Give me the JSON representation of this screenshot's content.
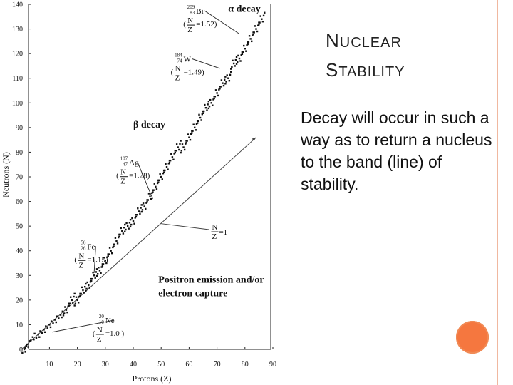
{
  "chart_data": {
    "type": "scatter",
    "title": "",
    "xlabel": "Protons (Z)",
    "ylabel": "Neutrons (N)",
    "xlim": [
      0,
      95
    ],
    "ylim": [
      0,
      140
    ],
    "x_ticks": [
      10,
      20,
      30,
      40,
      50,
      60,
      70,
      80,
      90
    ],
    "y_ticks": [
      0,
      10,
      20,
      30,
      40,
      50,
      60,
      70,
      80,
      90,
      100,
      110,
      120,
      130,
      140
    ],
    "grid": false,
    "band_of_stability": [
      [
        1,
        0
      ],
      [
        2,
        2
      ],
      [
        4,
        5
      ],
      [
        6,
        6
      ],
      [
        8,
        8
      ],
      [
        10,
        10
      ],
      [
        12,
        12
      ],
      [
        14,
        14
      ],
      [
        16,
        16
      ],
      [
        18,
        20
      ],
      [
        20,
        20
      ],
      [
        22,
        24
      ],
      [
        24,
        26
      ],
      [
        26,
        30
      ],
      [
        28,
        32
      ],
      [
        30,
        36
      ],
      [
        32,
        40
      ],
      [
        34,
        44
      ],
      [
        36,
        48
      ],
      [
        38,
        50
      ],
      [
        40,
        52
      ],
      [
        42,
        56
      ],
      [
        44,
        58
      ],
      [
        46,
        62
      ],
      [
        48,
        66
      ],
      [
        50,
        70
      ],
      [
        52,
        74
      ],
      [
        54,
        78
      ],
      [
        56,
        82
      ],
      [
        58,
        82
      ],
      [
        60,
        86
      ],
      [
        62,
        90
      ],
      [
        64,
        94
      ],
      [
        66,
        98
      ],
      [
        68,
        100
      ],
      [
        70,
        104
      ],
      [
        72,
        108
      ],
      [
        74,
        110
      ],
      [
        76,
        116
      ],
      [
        78,
        118
      ],
      [
        80,
        122
      ],
      [
        82,
        126
      ],
      [
        84,
        130
      ],
      [
        86,
        134
      ]
    ],
    "reference_line": {
      "label_num": "N",
      "label_den": "Z",
      "label_value": "=1",
      "from": [
        0,
        0
      ],
      "to": [
        84,
        86
      ]
    },
    "regions": [
      {
        "text": "α decay",
        "x": 74,
        "y": 137
      },
      {
        "text": "β decay",
        "x": 40,
        "y": 90
      },
      {
        "text": "Positron emission and/or",
        "x": 49,
        "y": 27
      },
      {
        "text": "electron capture",
        "x": 49,
        "y": 21.5
      }
    ],
    "nuclide_annotations": [
      {
        "mass": "209",
        "atomic": "83",
        "symbol": "Bi",
        "ratio": "=1.52)",
        "x": 62,
        "y": 136.5,
        "target": [
          78,
          128
        ]
      },
      {
        "mass": "184",
        "atomic": "74",
        "symbol": "W",
        "ratio": "=1.49)",
        "x": 57.5,
        "y": 117,
        "target": [
          71,
          114
        ]
      },
      {
        "mass": "107",
        "atomic": "47",
        "symbol": "Ag",
        "ratio": "=1.28)",
        "x": 38,
        "y": 75,
        "target": [
          47,
          61
        ]
      },
      {
        "mass": "56",
        "atomic": "26",
        "symbol": "Fe",
        "ratio": "=1.15)",
        "x": 23,
        "y": 41,
        "target": [
          26,
          31
        ]
      },
      {
        "mass": "20",
        "atomic": "10",
        "symbol": "Ne",
        "ratio": "=1.0 )",
        "x": 29.5,
        "y": 11,
        "target": [
          11,
          7
        ]
      }
    ]
  },
  "slide": {
    "title_cap1": "N",
    "title_rest1": "UCLEAR",
    "title_cap2": "S",
    "title_rest2": "TABILITY",
    "body": "Decay will occur in such a way as to return a nucleus to the band (line) of stability."
  },
  "colors": {
    "accent": "#f5773f",
    "points": "#111111"
  }
}
